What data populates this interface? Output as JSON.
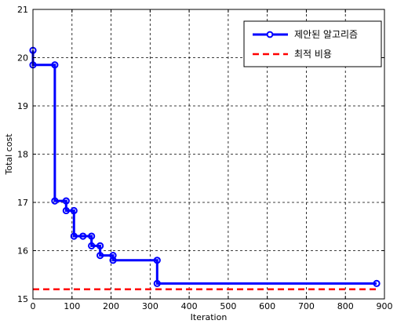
{
  "chart_data": {
    "type": "line",
    "title": "",
    "xlabel": "Iteration",
    "ylabel": "Total cost",
    "xlim": [
      0,
      900
    ],
    "ylim": [
      15,
      21
    ],
    "xticks": [
      0,
      100,
      200,
      300,
      400,
      500,
      600,
      700,
      800,
      900
    ],
    "yticks": [
      15,
      16,
      17,
      18,
      19,
      20,
      21
    ],
    "grid": true,
    "legend_position": "top-right",
    "series": [
      {
        "name": "제안된 알고리즘",
        "color": "#0000ff",
        "style": "solid-step",
        "marker": "circle",
        "points": [
          {
            "x": 0,
            "y": 20.15
          },
          {
            "x": 0,
            "y": 19.85
          },
          {
            "x": 56,
            "y": 19.85
          },
          {
            "x": 56,
            "y": 17.03
          },
          {
            "x": 85,
            "y": 17.03
          },
          {
            "x": 85,
            "y": 16.83
          },
          {
            "x": 105,
            "y": 16.83
          },
          {
            "x": 105,
            "y": 16.3
          },
          {
            "x": 128,
            "y": 16.3
          },
          {
            "x": 150,
            "y": 16.3
          },
          {
            "x": 150,
            "y": 16.1
          },
          {
            "x": 172,
            "y": 16.1
          },
          {
            "x": 172,
            "y": 15.9
          },
          {
            "x": 205,
            "y": 15.9
          },
          {
            "x": 205,
            "y": 15.8
          },
          {
            "x": 318,
            "y": 15.8
          },
          {
            "x": 318,
            "y": 15.32
          },
          {
            "x": 880,
            "y": 15.32
          }
        ]
      },
      {
        "name": "최적 비용",
        "color": "#ff0000",
        "style": "dashed",
        "points": [
          {
            "x": 0,
            "y": 15.2
          },
          {
            "x": 880,
            "y": 15.2
          }
        ]
      }
    ]
  }
}
